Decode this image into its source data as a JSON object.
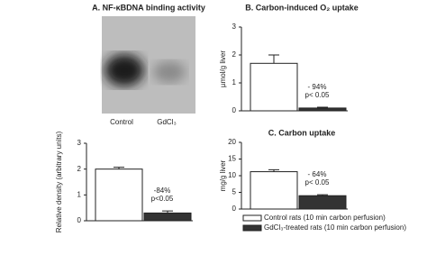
{
  "gel": {
    "title": "A. NF-κBDNA binding activity",
    "lanes": [
      "Control",
      "GdCl₃"
    ]
  },
  "chart_data": [
    {
      "type": "bar",
      "ylabel": "Relative density (arbitrary units)",
      "ylim": [
        0,
        3
      ],
      "yticks": [
        0,
        1,
        2,
        3
      ],
      "values": [
        2.0,
        0.3
      ],
      "errors": [
        0.07,
        0.08
      ],
      "colors": [
        "#ffffff",
        "#333333"
      ],
      "annotation": [
        "-84%",
        "p<0.05"
      ]
    },
    {
      "type": "bar",
      "title": "B. Carbon-induced O₂ uptake",
      "ylabel": "µmol/g liver",
      "ylim": [
        0,
        3
      ],
      "yticks": [
        0,
        1,
        2,
        3
      ],
      "values": [
        1.7,
        0.1
      ],
      "errors": [
        0.3,
        0.03
      ],
      "colors": [
        "#ffffff",
        "#333333"
      ],
      "annotation": [
        "- 94%",
        "p< 0.05"
      ]
    },
    {
      "type": "bar",
      "title": "C. Carbon uptake",
      "ylabel": "mg/g liver",
      "ylim": [
        0,
        20
      ],
      "yticks": [
        0,
        5,
        10,
        15,
        20
      ],
      "series": [
        {
          "name": "Control rats (10 min carbon perfusion)",
          "color": "#ffffff",
          "values": [
            11.2
          ],
          "errors": [
            0.6
          ]
        },
        {
          "name": "GdCl₃-treated rats (10 min carbon perfusion)",
          "color": "#333333",
          "values": [
            4.0
          ],
          "errors": [
            0.3
          ]
        }
      ],
      "annotation": [
        "- 64%",
        "p< 0.05"
      ],
      "legend": true
    }
  ]
}
